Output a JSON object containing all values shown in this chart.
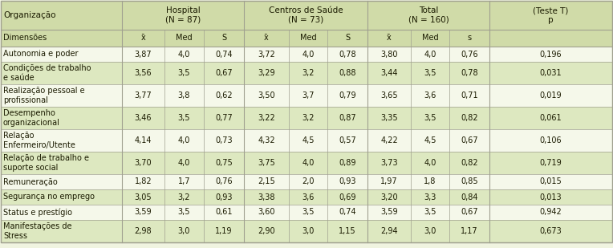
{
  "rows": [
    {
      "dim": "Autonomia e poder",
      "hosp": [
        "3,87",
        "4,0",
        "0,74"
      ],
      "cs": [
        "3,72",
        "4,0",
        "0,78"
      ],
      "tot": [
        "3,80",
        "4,0",
        "0,76"
      ],
      "p": "0,196",
      "shade": false,
      "nlines": 1
    },
    {
      "dim": "Condições de trabalho\ne saúde",
      "hosp": [
        "3,56",
        "3,5",
        "0,67"
      ],
      "cs": [
        "3,29",
        "3,2",
        "0,88"
      ],
      "tot": [
        "3,44",
        "3,5",
        "0,78"
      ],
      "p": "0,031",
      "shade": true,
      "nlines": 2
    },
    {
      "dim": "Realização pessoal e\nprofissional",
      "hosp": [
        "3,77",
        "3,8",
        "0,62"
      ],
      "cs": [
        "3,50",
        "3,7",
        "0,79"
      ],
      "tot": [
        "3,65",
        "3,6",
        "0,71"
      ],
      "p": "0,019",
      "shade": false,
      "nlines": 2
    },
    {
      "dim": "Desempenho\norganizacional",
      "hosp": [
        "3,46",
        "3,5",
        "0,77"
      ],
      "cs": [
        "3,22",
        "3,2",
        "0,87"
      ],
      "tot": [
        "3,35",
        "3,5",
        "0,82"
      ],
      "p": "0,061",
      "shade": true,
      "nlines": 2
    },
    {
      "dim": "Relação\nEnfermeiro/Utente",
      "hosp": [
        "4,14",
        "4,0",
        "0,73"
      ],
      "cs": [
        "4,32",
        "4,5",
        "0,57"
      ],
      "tot": [
        "4,22",
        "4,5",
        "0,67"
      ],
      "p": "0,106",
      "shade": false,
      "nlines": 2
    },
    {
      "dim": "Relação de trabalho e\nsuporte social",
      "hosp": [
        "3,70",
        "4,0",
        "0,75"
      ],
      "cs": [
        "3,75",
        "4,0",
        "0,89"
      ],
      "tot": [
        "3,73",
        "4,0",
        "0,82"
      ],
      "p": "0,719",
      "shade": true,
      "nlines": 2
    },
    {
      "dim": "Remuneração",
      "hosp": [
        "1,82",
        "1,7",
        "0,76"
      ],
      "cs": [
        "2,15",
        "2,0",
        "0,93"
      ],
      "tot": [
        "1,97",
        "1,8",
        "0,85"
      ],
      "p": "0,015",
      "shade": false,
      "nlines": 1
    },
    {
      "dim": "Segurança no emprego",
      "hosp": [
        "3,05",
        "3,2",
        "0,93"
      ],
      "cs": [
        "3,38",
        "3,6",
        "0,69"
      ],
      "tot": [
        "3,20",
        "3,3",
        "0,84"
      ],
      "p": "0,013",
      "shade": true,
      "nlines": 1
    },
    {
      "dim": "Status e prestígio",
      "hosp": [
        "3,59",
        "3,5",
        "0,61"
      ],
      "cs": [
        "3,60",
        "3,5",
        "0,74"
      ],
      "tot": [
        "3,59",
        "3,5",
        "0,67"
      ],
      "p": "0,942",
      "shade": false,
      "nlines": 1
    },
    {
      "dim": "Manifestações de\nStress",
      "hosp": [
        "2,98",
        "3,0",
        "1,19"
      ],
      "cs": [
        "2,90",
        "3,0",
        "1,15"
      ],
      "tot": [
        "2,94",
        "3,0",
        "1,17"
      ],
      "p": "0,673",
      "shade": true,
      "nlines": 2
    }
  ],
  "bg_color": "#f0f4e0",
  "shade_color": "#dde8c0",
  "header_color": "#d0dba8",
  "white_color": "#f5f8ea",
  "border_color": "#a0a090",
  "text_color": "#1a1a00",
  "font_size": 7.0,
  "header_font_size": 7.5
}
